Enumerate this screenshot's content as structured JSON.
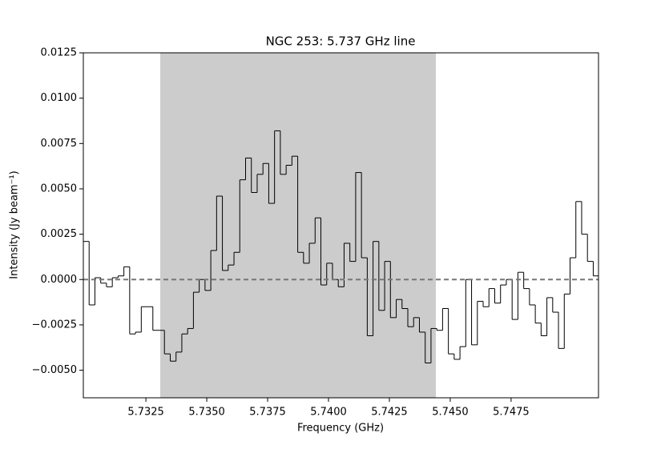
{
  "chart_data": {
    "type": "step",
    "title": "NGC 253: 5.737 GHz line",
    "x_label": "Frequency (GHz)",
    "y_label": "Intensity (Jy beam⁻¹)",
    "x": [
      5.730049,
      5.730287,
      5.730525,
      5.730763,
      5.731001,
      5.731239,
      5.731477,
      5.731715,
      5.731953,
      5.732191,
      5.732429,
      5.732667,
      5.732905,
      5.733143,
      5.733381,
      5.733619,
      5.733857,
      5.734095,
      5.734333,
      5.734571,
      5.734809,
      5.735047,
      5.735285,
      5.735523,
      5.735761,
      5.735999,
      5.736237,
      5.736475,
      5.736713,
      5.736951,
      5.737189,
      5.737427,
      5.737665,
      5.737903,
      5.738141,
      5.738379,
      5.738617,
      5.738855,
      5.739093,
      5.739331,
      5.739569,
      5.739807,
      5.740045,
      5.740283,
      5.740521,
      5.740759,
      5.740997,
      5.741235,
      5.741473,
      5.741711,
      5.741949,
      5.742187,
      5.742425,
      5.742663,
      5.742901,
      5.743139,
      5.743377,
      5.743615,
      5.743853,
      5.744091,
      5.744329,
      5.744567,
      5.744805,
      5.745043,
      5.745281,
      5.745519,
      5.745757,
      5.745995,
      5.746233,
      5.746471,
      5.746709,
      5.746947,
      5.747185,
      5.747423,
      5.747661,
      5.747899,
      5.748137,
      5.748375,
      5.748613,
      5.748851,
      5.749089,
      5.749327,
      5.749565,
      5.749803,
      5.750041,
      5.750279,
      5.750517,
      5.750755,
      5.750993
    ],
    "values": [
      0.0021,
      -0.0014,
      0.0001,
      -0.0002,
      -0.0004,
      0.0001,
      0.0002,
      0.0007,
      -0.003,
      -0.0029,
      -0.0015,
      -0.0015,
      -0.0028,
      -0.0028,
      -0.0041,
      -0.0045,
      -0.004,
      -0.003,
      -0.0027,
      -0.0007,
      0.0,
      -0.0006,
      0.0016,
      0.0046,
      0.0005,
      0.0008,
      0.0015,
      0.0055,
      0.0067,
      0.0048,
      0.0058,
      0.0064,
      0.0042,
      0.0082,
      0.0058,
      0.0063,
      0.0068,
      0.0015,
      0.0009,
      0.002,
      0.0034,
      -0.0003,
      0.0009,
      0.0,
      -0.0004,
      0.002,
      0.001,
      0.0059,
      0.0012,
      -0.0031,
      0.0021,
      -0.0017,
      0.001,
      -0.0021,
      -0.0011,
      -0.0016,
      -0.0026,
      -0.0021,
      -0.0029,
      -0.0046,
      -0.0027,
      -0.0028,
      -0.0016,
      -0.0041,
      -0.0044,
      -0.0037,
      0.0,
      -0.0036,
      -0.0012,
      -0.0015,
      -0.0005,
      -0.0013,
      -0.0003,
      0.0,
      -0.0022,
      0.0004,
      -0.0005,
      -0.0014,
      -0.0024,
      -0.0031,
      -0.001,
      -0.0018,
      -0.0038,
      -0.0008,
      0.0012,
      0.0043,
      0.0025,
      0.001,
      0.0002
    ],
    "color": "#000000",
    "span": [
      5.73309,
      5.74441
    ],
    "span_color": "#cccccc",
    "hline": 0,
    "hline_color": "#777777",
    "xlim": [
      5.72993,
      5.75109
    ],
    "ylim": [
      -0.00652,
      0.0125
    ],
    "xticks": [
      5.7325,
      {
        "value": 5.735,
        "label": "5.7350"
      },
      5.7375,
      {
        "value": 5.74,
        "label": "5.7400"
      },
      5.7425,
      {
        "value": 5.745,
        "label": "5.7450"
      },
      5.7475
    ],
    "yticks": [
      {
        "value": -0.005,
        "label": "−0.0050"
      },
      {
        "value": -0.0025,
        "label": "−0.0025"
      },
      {
        "value": 0,
        "label": "0.0000"
      },
      0.0025,
      {
        "value": 0.005,
        "label": "0.0050"
      },
      0.0075,
      {
        "value": 0.01,
        "label": "0.0100"
      },
      0.0125
    ]
  }
}
